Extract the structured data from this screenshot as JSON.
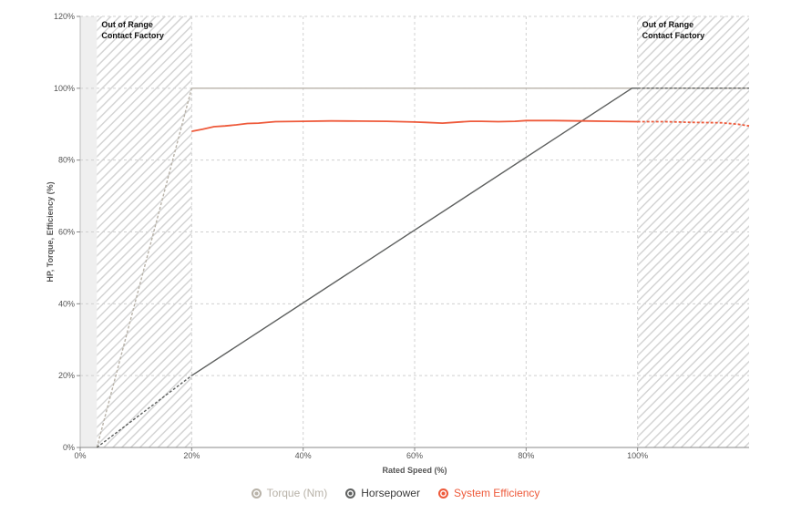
{
  "chart_data": {
    "type": "line",
    "xlabel": "Rated Speed (%)",
    "ylabel": "HP, Torque, Efficiency (%)",
    "xlim": [
      0,
      120
    ],
    "ylim": [
      0,
      120
    ],
    "x_ticks": [
      "0%",
      "20%",
      "40%",
      "60%",
      "80%",
      "100%"
    ],
    "y_ticks": [
      "0%",
      "20%",
      "40%",
      "60%",
      "80%",
      "100%",
      "120%"
    ],
    "grid": true,
    "zones": [
      {
        "label": "Out of Range",
        "sublabel": "Contact Factory",
        "x_start": 3,
        "x_end": 20
      },
      {
        "label": "Out of Range",
        "sublabel": "Contact Factory",
        "x_start": 100,
        "x_end": 120
      }
    ],
    "series": [
      {
        "name": "Torque (Nm)",
        "color": "#b8b2a8",
        "values": [
          [
            3,
            0
          ],
          [
            20,
            100
          ],
          [
            100,
            100
          ],
          [
            120,
            100
          ]
        ],
        "dashed_ranges": [
          [
            3,
            20
          ]
        ]
      },
      {
        "name": "Horsepower",
        "color": "#5f6160",
        "values": [
          [
            3,
            0
          ],
          [
            20,
            20
          ],
          [
            99,
            100
          ],
          [
            100,
            100
          ],
          [
            120,
            100
          ]
        ],
        "dashed_ranges": [
          [
            3,
            20
          ],
          [
            100,
            120
          ]
        ]
      },
      {
        "name": "System Efficiency",
        "color": "#ee5a3b",
        "values": [
          [
            20,
            88
          ],
          [
            22,
            88.6
          ],
          [
            24,
            89.3
          ],
          [
            26,
            89.5
          ],
          [
            28,
            89.8
          ],
          [
            30,
            90.2
          ],
          [
            32,
            90.3
          ],
          [
            35,
            90.7
          ],
          [
            40,
            90.8
          ],
          [
            45,
            90.9
          ],
          [
            50,
            90.85
          ],
          [
            55,
            90.8
          ],
          [
            60,
            90.6
          ],
          [
            62,
            90.5
          ],
          [
            65,
            90.3
          ],
          [
            67,
            90.5
          ],
          [
            70,
            90.8
          ],
          [
            72,
            90.8
          ],
          [
            75,
            90.7
          ],
          [
            78,
            90.8
          ],
          [
            80,
            91.0
          ],
          [
            85,
            91.0
          ],
          [
            90,
            90.9
          ],
          [
            95,
            90.8
          ],
          [
            100,
            90.7
          ],
          [
            105,
            90.7
          ],
          [
            110,
            90.5
          ],
          [
            115,
            90.4
          ],
          [
            118,
            90.0
          ],
          [
            120,
            89.5
          ]
        ],
        "dashed_ranges": [
          [
            100,
            120
          ]
        ]
      }
    ],
    "legend": {
      "position": "bottom-center"
    }
  }
}
